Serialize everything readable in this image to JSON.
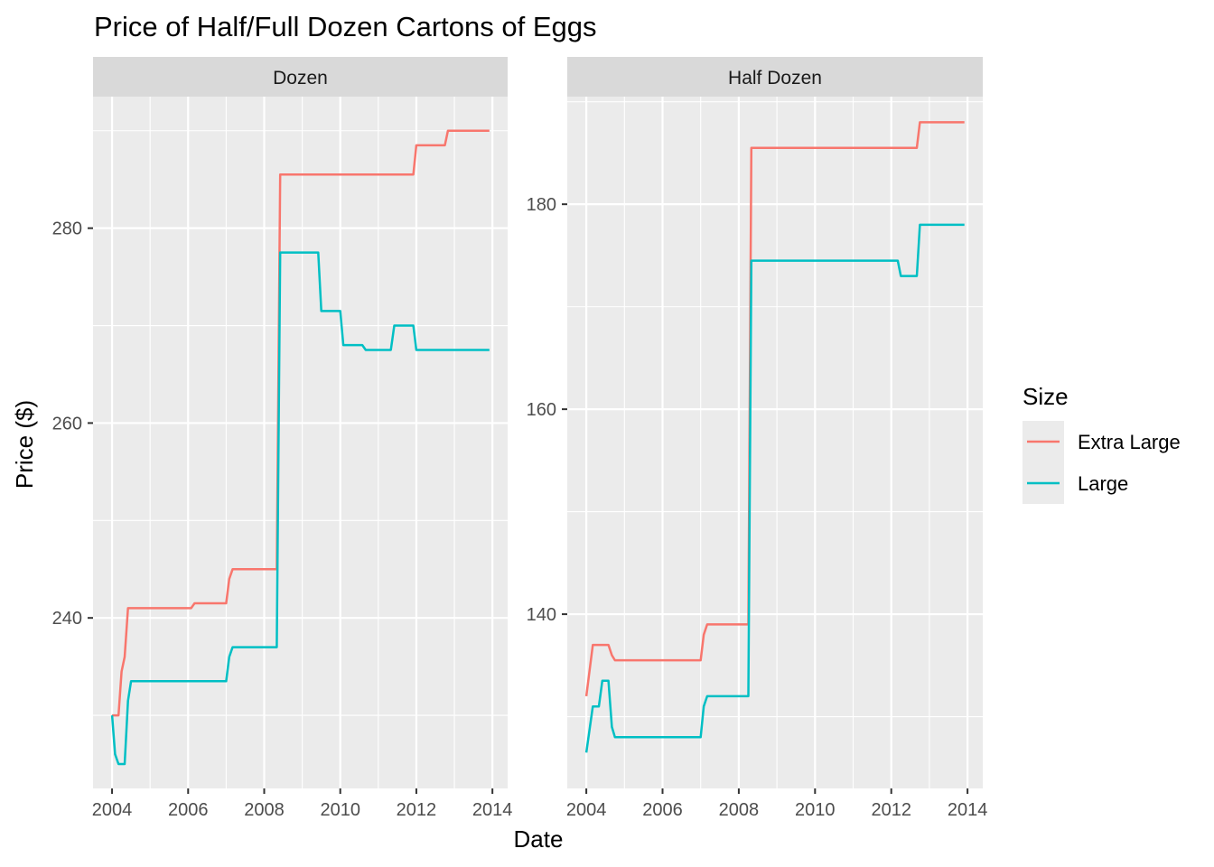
{
  "title": "Price of Half/Full Dozen Cartons of Eggs",
  "xlabel": "Date",
  "ylabel": "Price ($)",
  "legend": {
    "title": "Size",
    "placement": "right",
    "entries": [
      {
        "label": "Extra Large",
        "color": "#F8766D"
      },
      {
        "label": "Large",
        "color": "#00BFC4"
      }
    ]
  },
  "colors": {
    "panel_background": "#EBEBEB",
    "strip_background": "#D9D9D9",
    "grid": "#FFFFFF",
    "text": "#000000",
    "tick_text": "#4D4D4D",
    "extra_large": "#F8766D",
    "large": "#00BFC4"
  },
  "chart_data": [
    {
      "type": "line",
      "panel": "Dozen",
      "title": "Price of Half/Full Dozen Cartons of Eggs",
      "xlabel": "Date",
      "ylabel": "Price ($)",
      "xlim": [
        2003.5,
        2014.4
      ],
      "ylim": [
        222.5,
        293.5
      ],
      "x_ticks": [
        2004,
        2006,
        2008,
        2010,
        2012,
        2014
      ],
      "x_tick_labels": [
        "2004",
        "2006",
        "2008",
        "2010",
        "2012",
        "2014"
      ],
      "y_ticks": [
        240,
        260,
        280
      ],
      "y_tick_labels": [
        "240",
        "260",
        "280"
      ],
      "grid": true,
      "series": [
        {
          "name": "Extra Large",
          "color": "#F8766D",
          "x": [
            2004.0,
            2004.17,
            2004.25,
            2004.33,
            2004.42,
            2004.5,
            2006.08,
            2006.17,
            2007.0,
            2007.08,
            2007.17,
            2008.33,
            2008.42,
            2011.92,
            2012.0,
            2012.75,
            2012.83,
            2013.92
          ],
          "y": [
            230.0,
            230.0,
            234.5,
            236.0,
            241.0,
            241.0,
            241.0,
            241.5,
            241.5,
            244.0,
            245.0,
            245.0,
            285.5,
            285.5,
            288.5,
            288.5,
            290.0,
            290.0
          ]
        },
        {
          "name": "Large",
          "color": "#00BFC4",
          "x": [
            2004.0,
            2004.08,
            2004.17,
            2004.33,
            2004.42,
            2004.5,
            2004.58,
            2006.92,
            2007.0,
            2007.08,
            2007.17,
            2008.33,
            2008.42,
            2009.42,
            2009.5,
            2010.0,
            2010.08,
            2010.58,
            2010.67,
            2011.33,
            2011.42,
            2011.92,
            2012.0,
            2013.92
          ],
          "y": [
            230.0,
            226.0,
            225.0,
            225.0,
            231.5,
            233.5,
            233.5,
            233.5,
            233.5,
            236.0,
            237.0,
            237.0,
            277.5,
            277.5,
            271.5,
            271.5,
            268.0,
            268.0,
            267.5,
            267.5,
            270.0,
            270.0,
            267.5,
            267.5
          ]
        }
      ]
    },
    {
      "type": "line",
      "panel": "Half Dozen",
      "title": "Price of Half/Full Dozen Cartons of Eggs",
      "xlabel": "Date",
      "ylabel": "Price ($)",
      "xlim": [
        2003.5,
        2014.4
      ],
      "ylim": [
        123.0,
        190.5
      ],
      "x_ticks": [
        2004,
        2006,
        2008,
        2010,
        2012,
        2014
      ],
      "x_tick_labels": [
        "2004",
        "2006",
        "2008",
        "2010",
        "2012",
        "2014"
      ],
      "y_ticks": [
        140,
        160,
        180
      ],
      "y_tick_labels": [
        "140",
        "160",
        "180"
      ],
      "grid": true,
      "series": [
        {
          "name": "Extra Large",
          "color": "#F8766D",
          "x": [
            2004.0,
            2004.17,
            2004.58,
            2004.67,
            2004.75,
            2006.92,
            2007.0,
            2007.08,
            2007.17,
            2008.25,
            2008.33,
            2012.67,
            2012.75,
            2013.92
          ],
          "y": [
            132.0,
            137.0,
            137.0,
            136.0,
            135.5,
            135.5,
            135.5,
            138.0,
            139.0,
            139.0,
            185.5,
            185.5,
            188.0,
            188.0
          ],
          "note_ignore": ""
        },
        {
          "name": "Large",
          "color": "#00BFC4",
          "x": [
            2004.0,
            2004.17,
            2004.33,
            2004.42,
            2004.58,
            2004.67,
            2004.75,
            2006.92,
            2007.0,
            2007.08,
            2007.17,
            2008.25,
            2008.33,
            2012.17,
            2012.25,
            2012.67,
            2012.75,
            2013.92
          ],
          "y": [
            126.5,
            131.0,
            131.0,
            133.5,
            133.5,
            129.0,
            128.0,
            128.0,
            128.0,
            131.0,
            132.0,
            132.0,
            174.5,
            174.5,
            173.0,
            173.0,
            178.0,
            178.0
          ]
        }
      ]
    }
  ]
}
